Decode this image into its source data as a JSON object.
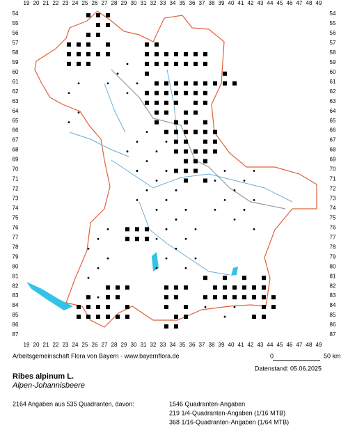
{
  "map": {
    "column_labels": [
      19,
      20,
      21,
      22,
      23,
      24,
      25,
      26,
      27,
      28,
      29,
      30,
      31,
      32,
      33,
      34,
      35,
      36,
      37,
      38,
      39,
      40,
      41,
      42,
      43,
      44,
      45,
      46,
      47,
      48,
      49
    ],
    "row_labels": [
      54,
      55,
      56,
      57,
      58,
      59,
      60,
      61,
      62,
      63,
      64,
      65,
      66,
      67,
      68,
      69,
      70,
      71,
      72,
      73,
      74,
      75,
      76,
      77,
      78,
      79,
      80,
      81,
      82,
      83,
      84,
      85,
      86,
      87
    ]
  },
  "footer": {
    "credit": "Arbeitsgemeinschaft Flora von Bayern - www.bayernflora.de",
    "scale_start": "0",
    "scale_end": "50 km",
    "date": "Datenstand: 05.06.2025",
    "species_latin": "Ribes alpinum L.",
    "species_common": "Alpen-Johannisbeere",
    "summary": "2164 Angaben aus 535 Quadranten, davon:",
    "counts": [
      "1546 Quadranten-Angaben",
      "219 1/4-Quadranten-Angaben (1/16 MTB)",
      "368 1/16-Quadranten-Angaben (1/64 MTB)"
    ]
  }
}
